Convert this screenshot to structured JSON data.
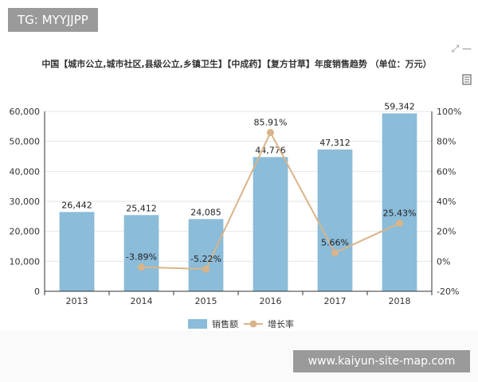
{
  "tag": "TG: MYYJJPP",
  "watermark": "www.kaiyun-site-map.com",
  "icons": {
    "top_right": "expand-icon",
    "doc": "document-icon"
  },
  "chart_data": {
    "type": "bar",
    "title": "中国【城市公立,城市社区,县级公立,乡镇卫生】【中成药】【复方甘草】年度销售趋势 （单位：万元）",
    "categories": [
      "2013",
      "2014",
      "2015",
      "2016",
      "2017",
      "2018"
    ],
    "series": [
      {
        "name": "销售额",
        "type": "bar",
        "axis": "left",
        "color": "#8bbcd9",
        "values": [
          26442,
          25412,
          24085,
          44776,
          47312,
          59342
        ],
        "labels": [
          "26,442",
          "25,412",
          "24,085",
          "44,776",
          "47,312",
          "59,342"
        ]
      },
      {
        "name": "增长率",
        "type": "line",
        "axis": "right",
        "color": "#d9b48a",
        "values": [
          null,
          -3.89,
          -5.22,
          85.91,
          5.66,
          25.43
        ],
        "labels": [
          "",
          "-3.89%",
          "-5.22%",
          "85.91%",
          "5.66%",
          "25.43%"
        ]
      }
    ],
    "ylim_left": [
      0,
      60000
    ],
    "yticks_left": [
      "0",
      "10,000",
      "20,000",
      "30,000",
      "40,000",
      "50,000",
      "60,000"
    ],
    "ylim_right": [
      -20,
      100
    ],
    "yticks_right": [
      "-20%",
      "0%",
      "20%",
      "40%",
      "60%",
      "80%",
      "100%"
    ],
    "grid": true,
    "legend_position": "bottom"
  }
}
